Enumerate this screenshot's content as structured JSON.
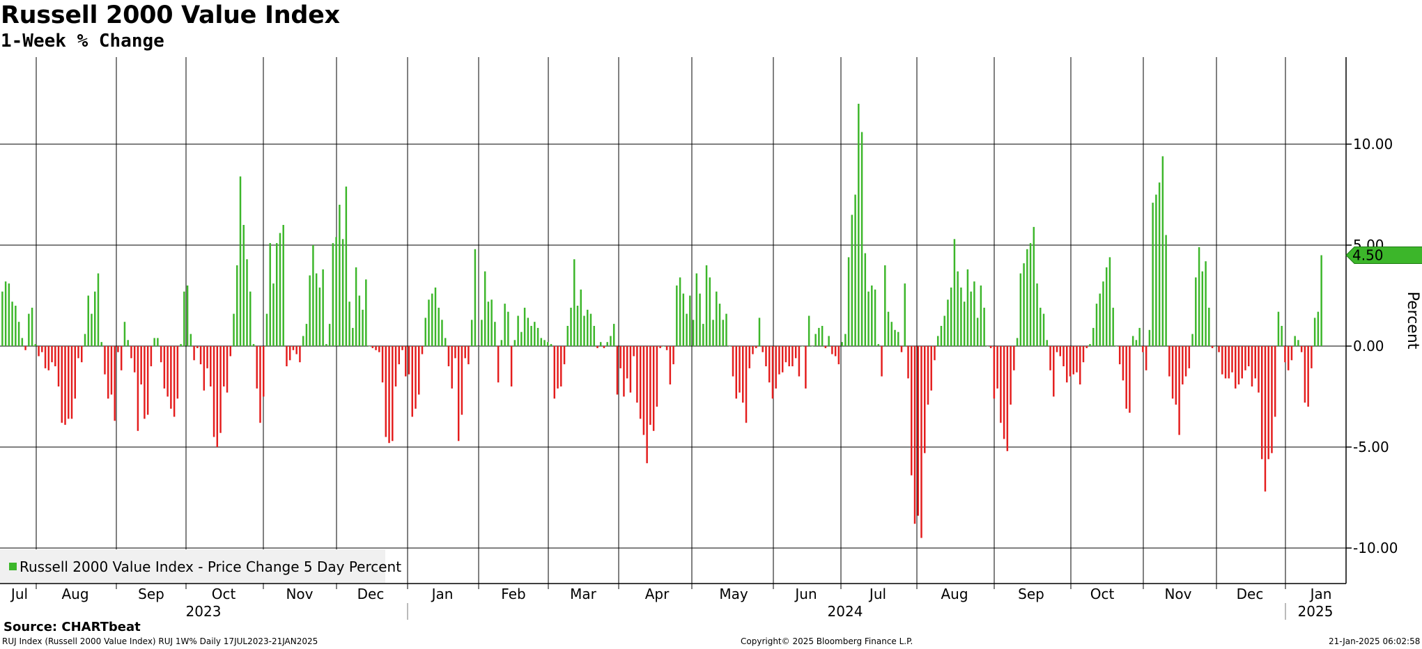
{
  "title": "Russell 2000 Value Index",
  "subtitle": "1-Week % Change",
  "source": "Source: CHARTbeat",
  "footer": {
    "left": "RUJ Index (Russell 2000 Value Index) RUJ 1W%  Daily 17JUL2023-21JAN2025",
    "center": "Copyright© 2025 Bloomberg Finance L.P.",
    "right": "21-Jan-2025 06:02:58"
  },
  "colors": {
    "positive": "#3cb62a",
    "negative": "#e41d1d",
    "grid": "#000000",
    "callout_bg": "#3cb62a"
  },
  "chart_data": {
    "type": "bar",
    "title": "Russell 2000 Value Index",
    "subtitle": "1-Week % Change",
    "ylabel": "Percent",
    "ylim": [
      -11.6,
      14.4
    ],
    "yticks": [
      {
        "value": 10,
        "label": "10.00"
      },
      {
        "value": 5,
        "label": "5.00"
      },
      {
        "value": 0,
        "label": "0.00"
      },
      {
        "value": -5,
        "label": "-5.00"
      },
      {
        "value": -10,
        "label": "-10.00"
      }
    ],
    "months": [
      "Jul",
      "Aug",
      "Sep",
      "Oct",
      "Nov",
      "Dec",
      "Jan",
      "Feb",
      "Mar",
      "Apr",
      "May",
      "Jun",
      "Jul",
      "Aug",
      "Sep",
      "Oct",
      "Nov",
      "Dec",
      "Jan"
    ],
    "years": [
      "2023",
      "2024",
      "2025"
    ],
    "last_value_label": "4.50",
    "last_value": 4.5,
    "legend": "Russell 2000 Value Index - Price Change 5 Day Percent",
    "legend_position": "bottom-left",
    "grid": true,
    "series": [
      {
        "name": "Russell 2000 Value Index - Price Change 5 Day Percent",
        "values": [
          2.7,
          3.2,
          3.1,
          2.2,
          2.0,
          1.2,
          0.4,
          -0.2,
          1.6,
          1.9,
          0.1,
          -0.5,
          -0.3,
          -1.1,
          -1.2,
          -0.8,
          -1.0,
          -2.0,
          -3.8,
          -3.9,
          -3.6,
          -3.6,
          -2.6,
          -0.6,
          -0.8,
          0.6,
          2.5,
          1.6,
          2.7,
          3.6,
          0.2,
          -1.4,
          -2.6,
          -2.4,
          -3.7,
          -0.3,
          -1.2,
          1.2,
          0.3,
          -0.6,
          -1.3,
          -4.2,
          -1.9,
          -3.6,
          -3.4,
          -1.0,
          0.4,
          0.4,
          -0.8,
          -2.1,
          -2.5,
          -3.1,
          -3.5,
          -2.6,
          0.1,
          2.7,
          3.0,
          0.6,
          -0.7,
          -0.1,
          -0.9,
          -2.2,
          -1.1,
          -2.0,
          -4.5,
          -5.0,
          -4.3,
          -2.0,
          -2.3,
          -0.5,
          1.6,
          4.0,
          8.4,
          6.0,
          4.3,
          2.7,
          0.1,
          -2.1,
          -3.8,
          -2.5,
          1.6,
          5.1,
          3.1,
          5.1,
          5.6,
          6.0,
          -1.0,
          -0.7,
          -0.2,
          -0.4,
          -0.8,
          0.5,
          1.1,
          3.5,
          5.0,
          3.6,
          2.9,
          3.8,
          0.1,
          1.1,
          5.1,
          5.4,
          7.0,
          5.3,
          7.9,
          2.2,
          0.9,
          3.9,
          2.5,
          1.8,
          3.3,
          0.0,
          -0.1,
          -0.2,
          -0.3,
          -1.8,
          -4.5,
          -4.8,
          -4.7,
          -2.0,
          -0.9,
          -0.2,
          -1.5,
          -1.4,
          -3.5,
          -3.1,
          -2.4,
          -0.4,
          1.4,
          2.3,
          2.6,
          2.9,
          1.9,
          1.3,
          0.4,
          -1.0,
          -2.1,
          -0.6,
          -4.7,
          -3.4,
          -0.6,
          -0.9,
          1.3,
          4.8,
          0.0,
          1.3,
          3.7,
          2.2,
          2.3,
          1.2,
          -1.8,
          0.3,
          2.1,
          1.7,
          -2.0,
          0.3,
          1.5,
          0.7,
          1.9,
          1.4,
          1.0,
          1.2,
          0.9,
          0.4,
          0.3,
          0.2,
          0.1,
          -2.6,
          -2.1,
          -2.0,
          -0.9,
          1.0,
          1.9,
          4.3,
          2.0,
          2.8,
          1.5,
          1.8,
          1.6,
          1.0,
          -0.1,
          0.2,
          -0.1,
          0.2,
          0.5,
          1.1,
          -2.4,
          -1.1,
          -2.5,
          -1.6,
          -2.3,
          -0.5,
          -2.8,
          -3.6,
          -4.4,
          -5.8,
          -3.9,
          -4.2,
          -3.0,
          -0.1,
          0.0,
          -0.2,
          -1.9,
          -0.9,
          3.0,
          3.4,
          2.6,
          1.6,
          2.5,
          1.3,
          3.6,
          2.6,
          1.1,
          4.0,
          3.4,
          1.3,
          2.7,
          2.1,
          1.3,
          1.6,
          0.0,
          -1.5,
          -2.6,
          -2.3,
          -2.8,
          -3.8,
          -1.1,
          -0.4,
          -0.1,
          1.4,
          -0.3,
          -1.0,
          -1.8,
          -2.6,
          -2.1,
          -1.4,
          -1.3,
          -0.8,
          -1.0,
          -1.0,
          -0.6,
          -1.5,
          0.0,
          -2.1,
          1.5,
          0.0,
          0.6,
          0.9,
          1.0,
          -0.1,
          0.5,
          -0.4,
          -0.5,
          -0.9,
          0.2,
          0.6,
          4.4,
          6.5,
          7.5,
          12.0,
          10.6,
          4.6,
          2.7,
          3.0,
          2.8,
          0.1,
          -1.5,
          4.0,
          1.7,
          1.2,
          0.8,
          0.7,
          -0.3,
          3.1,
          -1.6,
          -6.4,
          -8.8,
          -8.4,
          -9.5,
          -5.3,
          -2.9,
          -2.2,
          -0.7,
          0.5,
          1.0,
          1.5,
          2.3,
          2.9,
          5.3,
          3.7,
          2.9,
          2.2,
          3.8,
          2.7,
          3.2,
          1.4,
          3.0,
          1.9,
          0.0,
          -0.1,
          -2.6,
          -2.1,
          -3.8,
          -4.6,
          -5.2,
          -2.9,
          -1.2,
          0.4,
          3.6,
          4.1,
          4.8,
          5.1,
          5.9,
          3.1,
          1.9,
          1.6,
          0.3,
          -1.2,
          -2.5,
          -0.3,
          -0.5,
          -1.0,
          -1.8,
          -1.5,
          -1.4,
          -1.3,
          -1.9,
          -0.8,
          -0.1,
          0.1,
          0.9,
          2.1,
          2.6,
          3.2,
          3.9,
          4.4,
          1.9,
          0.0,
          -0.9,
          -1.7,
          -3.1,
          -3.3,
          0.5,
          0.3,
          0.9,
          -0.3,
          -1.2,
          0.8,
          7.1,
          7.5,
          8.1,
          9.4,
          5.5,
          -1.5,
          -2.6,
          -2.9,
          -4.4,
          -1.9,
          -1.5,
          -1.1,
          0.6,
          3.4,
          4.9,
          3.7,
          4.2,
          1.9,
          -0.1,
          0.0,
          -0.3,
          -1.4,
          -1.6,
          -1.6,
          -1.3,
          -2.1,
          -1.9,
          -1.6,
          -1.2,
          -1.0,
          -2.0,
          -1.6,
          -2.3,
          -5.6,
          -7.2,
          -5.6,
          -5.3,
          -3.5,
          1.7,
          1.0,
          -0.8,
          -1.2,
          -0.7,
          0.5,
          0.3,
          -0.3,
          -2.8,
          -3.0,
          -1.1,
          1.4,
          1.7,
          4.5
        ]
      }
    ]
  }
}
